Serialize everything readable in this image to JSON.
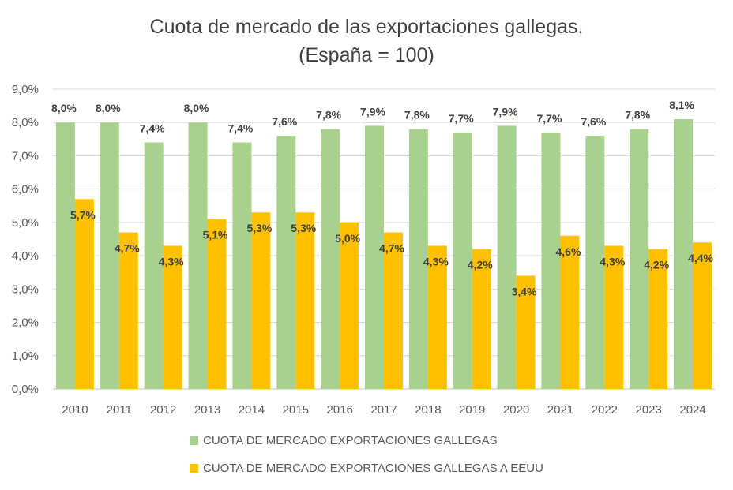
{
  "chart_data": {
    "type": "bar",
    "title": "Cuota de mercado de las exportaciones gallegas.",
    "subtitle": "(España = 100)",
    "categories": [
      "2010",
      "2011",
      "2012",
      "2013",
      "2014",
      "2015",
      "2016",
      "2017",
      "2018",
      "2019",
      "2020",
      "2021",
      "2022",
      "2023",
      "2024"
    ],
    "series": [
      {
        "name": "CUOTA DE MERCADO EXPORTACIONES GALLEGAS",
        "color": "#a9d18e",
        "values": [
          8.0,
          8.0,
          7.4,
          8.0,
          7.4,
          7.6,
          7.8,
          7.9,
          7.8,
          7.7,
          7.9,
          7.7,
          7.6,
          7.8,
          8.1
        ],
        "labels": [
          "8,0%",
          "8,0%",
          "7,4%",
          "8,0%",
          "7,4%",
          "7,6%",
          "7,8%",
          "7,9%",
          "7,8%",
          "7,7%",
          "7,9%",
          "7,7%",
          "7,6%",
          "7,8%",
          "8,1%"
        ]
      },
      {
        "name": "CUOTA DE MERCADO EXPORTACIONES GALLEGAS A EEUU",
        "color": "#ffc000",
        "values": [
          5.7,
          4.7,
          4.3,
          5.1,
          5.3,
          5.3,
          5.0,
          4.7,
          4.3,
          4.2,
          3.4,
          4.6,
          4.3,
          4.2,
          4.4
        ],
        "labels": [
          "5,7%",
          "4,7%",
          "4,3%",
          "5,1%",
          "5,3%",
          "5,3%",
          "5,0%",
          "4,7%",
          "4,3%",
          "4,2%",
          "3,4%",
          "4,6%",
          "4,3%",
          "4,2%",
          "4,4%"
        ]
      }
    ],
    "ylim": [
      0,
      9
    ],
    "yticks": [
      "0,0%",
      "1,0%",
      "2,0%",
      "3,0%",
      "4,0%",
      "5,0%",
      "6,0%",
      "7,0%",
      "8,0%",
      "9,0%"
    ],
    "grid": true,
    "legend": "bottom"
  }
}
